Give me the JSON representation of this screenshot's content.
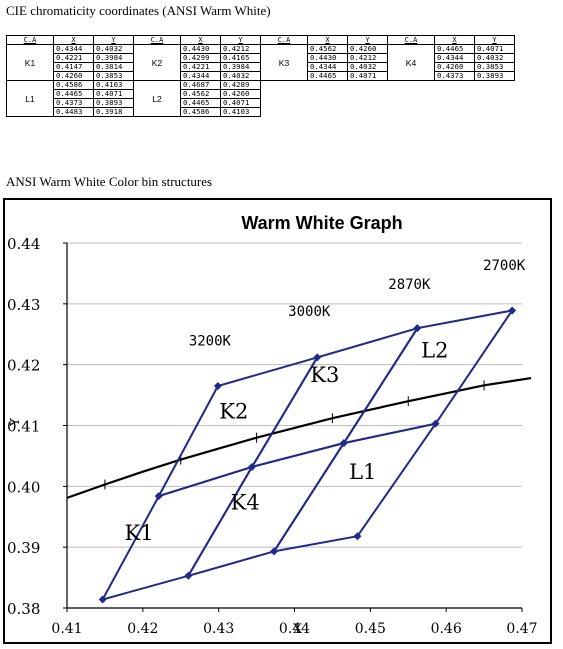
{
  "table_title": "CIE chromaticity coordinates (ANSI Warm White)",
  "section_title": "ANSI Warm White Color bin structures",
  "table": {
    "headers": [
      "C.A",
      "X",
      "Y"
    ],
    "groups": [
      [
        {
          "name": "K1",
          "x": [
            "0.4344",
            "0.4221",
            "0.4147",
            "0.4260"
          ],
          "y": [
            "0.4032",
            "0.3984",
            "0.3814",
            "0.3853"
          ]
        },
        {
          "name": "K2",
          "x": [
            "0.4430",
            "0.4299",
            "0.4221",
            "0.4344"
          ],
          "y": [
            "0.4212",
            "0.4165",
            "0.3984",
            "0.4032"
          ]
        },
        {
          "name": "K3",
          "x": [
            "0.4562",
            "0.4430",
            "0.4344",
            "0.4465"
          ],
          "y": [
            "0.4260",
            "0.4212",
            "0.4032",
            "0.4071"
          ]
        },
        {
          "name": "K4",
          "x": [
            "0.4465",
            "0.4344",
            "0.4260",
            "0.4373"
          ],
          "y": [
            "0.4071",
            "0.4032",
            "0.3853",
            "0.3893"
          ]
        }
      ],
      [
        {
          "name": "L1",
          "x": [
            "0.4586",
            "0.4465",
            "0.4373",
            "0.4483"
          ],
          "y": [
            "0.4103",
            "0.4071",
            "0.3893",
            "0.3918"
          ]
        },
        {
          "name": "L2",
          "x": [
            "0.4687",
            "0.4562",
            "0.4465",
            "0.4586"
          ],
          "y": [
            "0.4289",
            "0.4260",
            "0.4071",
            "0.4103"
          ]
        }
      ]
    ]
  },
  "chart_data": {
    "type": "line",
    "title": "Warm White Graph",
    "xlabel": "X",
    "ylabel": "Y",
    "xlim": [
      0.41,
      0.47
    ],
    "ylim": [
      0.38,
      0.44
    ],
    "x_ticks": [
      "0.41",
      "0.42",
      "0.43",
      "0.44",
      "0.45",
      "0.46",
      "0.47"
    ],
    "y_ticks": [
      "0.44",
      "0.43",
      "0.42",
      "0.41",
      "0.40",
      "0.39",
      "0.38"
    ],
    "grid": "horizontal",
    "bins": [
      {
        "name": "K1",
        "points": [
          [
            0.4344,
            0.4032
          ],
          [
            0.4221,
            0.3984
          ],
          [
            0.4147,
            0.3814
          ],
          [
            0.426,
            0.3853
          ]
        ],
        "label_at": [
          0.4195,
          0.3925
        ]
      },
      {
        "name": "K2",
        "points": [
          [
            0.443,
            0.4212
          ],
          [
            0.4299,
            0.4165
          ],
          [
            0.4221,
            0.3984
          ],
          [
            0.4344,
            0.4032
          ]
        ],
        "label_at": [
          0.432,
          0.4125
        ]
      },
      {
        "name": "K3",
        "points": [
          [
            0.4562,
            0.426
          ],
          [
            0.443,
            0.4212
          ],
          [
            0.4344,
            0.4032
          ],
          [
            0.4465,
            0.4071
          ]
        ],
        "label_at": [
          0.444,
          0.4185
        ]
      },
      {
        "name": "K4",
        "points": [
          [
            0.4465,
            0.4071
          ],
          [
            0.4344,
            0.4032
          ],
          [
            0.426,
            0.3853
          ],
          [
            0.4373,
            0.3893
          ]
        ],
        "label_at": [
          0.4335,
          0.3975
        ]
      },
      {
        "name": "L1",
        "points": [
          [
            0.4586,
            0.4103
          ],
          [
            0.4465,
            0.4071
          ],
          [
            0.4373,
            0.3893
          ],
          [
            0.4483,
            0.3918
          ]
        ],
        "label_at": [
          0.449,
          0.4025
        ]
      },
      {
        "name": "L2",
        "points": [
          [
            0.4687,
            0.4289
          ],
          [
            0.4562,
            0.426
          ],
          [
            0.4465,
            0.4071
          ],
          [
            0.4586,
            0.4103
          ]
        ],
        "label_at": [
          0.4585,
          0.4225
        ]
      }
    ],
    "cct_labels": [
      {
        "text": "3200K",
        "x": 0.4299,
        "y": 0.4212
      },
      {
        "text": "3000K",
        "x": 0.443,
        "y": 0.426
      },
      {
        "text": "2870K",
        "x": 0.4562,
        "y": 0.4305
      },
      {
        "text": "2700K",
        "x": 0.4687,
        "y": 0.4336
      }
    ],
    "planckian": [
      [
        0.41,
        0.3981
      ],
      [
        0.415,
        0.4003
      ],
      [
        0.42,
        0.4024
      ],
      [
        0.425,
        0.4044
      ],
      [
        0.43,
        0.4062
      ],
      [
        0.435,
        0.408
      ],
      [
        0.44,
        0.4096
      ],
      [
        0.445,
        0.4112
      ],
      [
        0.45,
        0.4126
      ],
      [
        0.455,
        0.414
      ],
      [
        0.46,
        0.4153
      ],
      [
        0.465,
        0.4166
      ],
      [
        0.4712,
        0.4178
      ]
    ],
    "planckian_ticks": [
      0.415,
      0.425,
      0.435,
      0.445,
      0.455,
      0.465
    ],
    "colors": {
      "bin_line": "#1f2b8c",
      "planck": "#000000",
      "grid": "#bdbdbd"
    }
  }
}
